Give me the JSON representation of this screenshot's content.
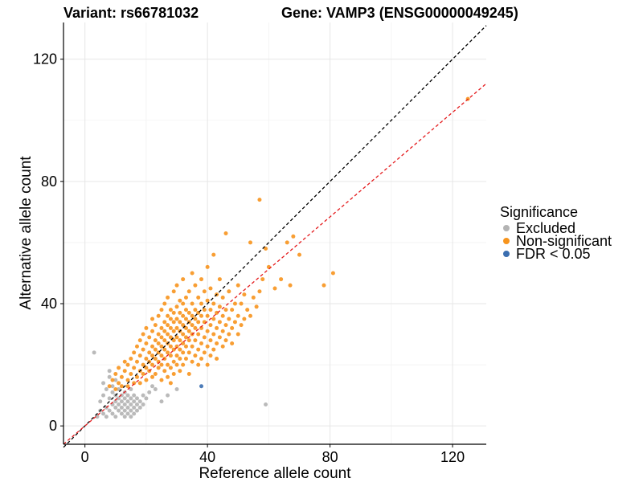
{
  "chart_data": {
    "type": "scatter",
    "title_left": "Variant: rs66781032",
    "title_right": "Gene: VAMP3 (ENSG00000049245)",
    "xlabel": "Reference allele count",
    "ylabel": "Alternative allele count",
    "xlim": [
      -7,
      131
    ],
    "ylim": [
      -6,
      132
    ],
    "xticks": [
      0,
      40,
      80,
      120
    ],
    "yticks": [
      0,
      40,
      80,
      120
    ],
    "x_minor": [
      20,
      60,
      100
    ],
    "y_minor": [
      20,
      60,
      100
    ],
    "grid": true,
    "legend_position": "right",
    "legend_title": "Significance",
    "reference_lines": [
      {
        "kind": "identity",
        "color": "#000000",
        "dashed": true,
        "slope": 1.0,
        "intercept": 0
      },
      {
        "kind": "fit",
        "color": "#e41a1c",
        "dashed": true,
        "slope": 0.855,
        "intercept": 0
      }
    ],
    "series": [
      {
        "name": "Excluded",
        "color": "#b3b3b3",
        "points": [
          [
            3,
            24
          ],
          [
            4,
            3
          ],
          [
            5,
            5
          ],
          [
            5,
            8
          ],
          [
            6,
            4
          ],
          [
            6,
            10
          ],
          [
            6,
            14
          ],
          [
            7,
            6
          ],
          [
            7,
            3
          ],
          [
            7,
            12
          ],
          [
            8,
            5
          ],
          [
            8,
            9
          ],
          [
            8,
            16
          ],
          [
            8,
            18
          ],
          [
            9,
            4
          ],
          [
            9,
            7
          ],
          [
            9,
            11
          ],
          [
            9,
            13
          ],
          [
            10,
            3
          ],
          [
            10,
            6
          ],
          [
            10,
            8
          ],
          [
            10,
            10
          ],
          [
            10,
            15
          ],
          [
            11,
            5
          ],
          [
            11,
            7
          ],
          [
            11,
            9
          ],
          [
            11,
            12
          ],
          [
            12,
            4
          ],
          [
            12,
            6
          ],
          [
            12,
            8
          ],
          [
            12,
            10
          ],
          [
            13,
            3
          ],
          [
            13,
            5
          ],
          [
            13,
            7
          ],
          [
            13,
            9
          ],
          [
            13,
            11
          ],
          [
            14,
            4
          ],
          [
            14,
            6
          ],
          [
            14,
            8
          ],
          [
            14,
            10
          ],
          [
            15,
            3
          ],
          [
            15,
            5
          ],
          [
            15,
            7
          ],
          [
            15,
            9
          ],
          [
            15,
            12
          ],
          [
            16,
            4
          ],
          [
            16,
            6
          ],
          [
            16,
            8
          ],
          [
            16,
            10
          ],
          [
            17,
            5
          ],
          [
            17,
            7
          ],
          [
            17,
            9
          ],
          [
            18,
            6
          ],
          [
            18,
            8
          ],
          [
            19,
            7
          ],
          [
            19,
            10
          ],
          [
            20,
            9
          ],
          [
            21,
            11
          ],
          [
            22,
            13
          ],
          [
            23,
            12
          ],
          [
            25,
            8
          ],
          [
            27,
            10
          ],
          [
            30,
            12
          ],
          [
            59,
            7
          ]
        ]
      },
      {
        "name": "Non-significant",
        "color": "#f7941d",
        "points": [
          [
            8,
            13
          ],
          [
            9,
            15
          ],
          [
            10,
            12
          ],
          [
            10,
            17
          ],
          [
            11,
            14
          ],
          [
            11,
            19
          ],
          [
            12,
            13
          ],
          [
            12,
            16
          ],
          [
            13,
            18
          ],
          [
            13,
            21
          ],
          [
            14,
            13
          ],
          [
            14,
            15
          ],
          [
            14,
            20
          ],
          [
            15,
            17
          ],
          [
            15,
            22
          ],
          [
            16,
            14
          ],
          [
            16,
            19
          ],
          [
            16,
            24
          ],
          [
            17,
            16
          ],
          [
            17,
            21
          ],
          [
            17,
            26
          ],
          [
            18,
            14
          ],
          [
            18,
            18
          ],
          [
            18,
            23
          ],
          [
            18,
            28
          ],
          [
            19,
            17
          ],
          [
            19,
            20
          ],
          [
            19,
            25
          ],
          [
            19,
            30
          ],
          [
            20,
            15
          ],
          [
            20,
            19
          ],
          [
            20,
            22
          ],
          [
            20,
            27
          ],
          [
            20,
            32
          ],
          [
            21,
            18
          ],
          [
            21,
            21
          ],
          [
            21,
            24
          ],
          [
            21,
            29
          ],
          [
            22,
            16
          ],
          [
            22,
            20
          ],
          [
            22,
            23
          ],
          [
            22,
            26
          ],
          [
            22,
            31
          ],
          [
            22,
            35
          ],
          [
            23,
            17
          ],
          [
            23,
            22
          ],
          [
            23,
            25
          ],
          [
            23,
            28
          ],
          [
            23,
            33
          ],
          [
            24,
            19
          ],
          [
            24,
            21
          ],
          [
            24,
            24
          ],
          [
            24,
            27
          ],
          [
            24,
            30
          ],
          [
            24,
            36
          ],
          [
            25,
            15
          ],
          [
            25,
            20
          ],
          [
            25,
            23
          ],
          [
            25,
            26
          ],
          [
            25,
            29
          ],
          [
            25,
            32
          ],
          [
            25,
            38
          ],
          [
            26,
            18
          ],
          [
            26,
            22
          ],
          [
            26,
            25
          ],
          [
            26,
            28
          ],
          [
            26,
            31
          ],
          [
            26,
            34
          ],
          [
            26,
            40
          ],
          [
            27,
            16
          ],
          [
            27,
            20
          ],
          [
            27,
            24
          ],
          [
            27,
            27
          ],
          [
            27,
            30
          ],
          [
            27,
            33
          ],
          [
            27,
            36
          ],
          [
            27,
            42
          ],
          [
            28,
            14
          ],
          [
            28,
            19
          ],
          [
            28,
            23
          ],
          [
            28,
            26
          ],
          [
            28,
            29
          ],
          [
            28,
            32
          ],
          [
            28,
            35
          ],
          [
            28,
            38
          ],
          [
            29,
            17
          ],
          [
            29,
            21
          ],
          [
            29,
            25
          ],
          [
            29,
            28
          ],
          [
            29,
            31
          ],
          [
            29,
            34
          ],
          [
            29,
            37
          ],
          [
            29,
            44
          ],
          [
            30,
            20
          ],
          [
            30,
            23
          ],
          [
            30,
            26
          ],
          [
            30,
            29
          ],
          [
            30,
            32
          ],
          [
            30,
            35
          ],
          [
            30,
            39
          ],
          [
            30,
            46
          ],
          [
            31,
            18
          ],
          [
            31,
            22
          ],
          [
            31,
            25
          ],
          [
            31,
            28
          ],
          [
            31,
            31
          ],
          [
            31,
            34
          ],
          [
            31,
            37
          ],
          [
            31,
            41
          ],
          [
            32,
            20
          ],
          [
            32,
            24
          ],
          [
            32,
            27
          ],
          [
            32,
            30
          ],
          [
            32,
            33
          ],
          [
            32,
            36
          ],
          [
            32,
            40
          ],
          [
            32,
            48
          ],
          [
            33,
            22
          ],
          [
            33,
            26
          ],
          [
            33,
            29
          ],
          [
            33,
            32
          ],
          [
            33,
            35
          ],
          [
            33,
            38
          ],
          [
            33,
            42
          ],
          [
            34,
            17
          ],
          [
            34,
            24
          ],
          [
            34,
            28
          ],
          [
            34,
            31
          ],
          [
            34,
            34
          ],
          [
            34,
            37
          ],
          [
            34,
            44
          ],
          [
            35,
            21
          ],
          [
            35,
            26
          ],
          [
            35,
            30
          ],
          [
            35,
            33
          ],
          [
            35,
            36
          ],
          [
            35,
            40
          ],
          [
            35,
            50
          ],
          [
            36,
            23
          ],
          [
            36,
            28
          ],
          [
            36,
            32
          ],
          [
            36,
            35
          ],
          [
            36,
            38
          ],
          [
            36,
            46
          ],
          [
            37,
            20
          ],
          [
            37,
            25
          ],
          [
            37,
            30
          ],
          [
            37,
            34
          ],
          [
            37,
            37
          ],
          [
            37,
            42
          ],
          [
            38,
            22
          ],
          [
            38,
            27
          ],
          [
            38,
            32
          ],
          [
            38,
            36
          ],
          [
            38,
            40
          ],
          [
            38,
            48
          ],
          [
            39,
            24
          ],
          [
            39,
            29
          ],
          [
            39,
            34
          ],
          [
            39,
            38
          ],
          [
            39,
            44
          ],
          [
            40,
            20
          ],
          [
            40,
            26
          ],
          [
            40,
            31
          ],
          [
            40,
            36
          ],
          [
            40,
            41
          ],
          [
            40,
            52
          ],
          [
            41,
            23
          ],
          [
            41,
            28
          ],
          [
            41,
            33
          ],
          [
            41,
            38
          ],
          [
            41,
            45
          ],
          [
            42,
            25
          ],
          [
            42,
            30
          ],
          [
            42,
            35
          ],
          [
            42,
            40
          ],
          [
            42,
            56
          ],
          [
            43,
            22
          ],
          [
            43,
            27
          ],
          [
            43,
            32
          ],
          [
            43,
            37
          ],
          [
            43,
            43
          ],
          [
            44,
            29
          ],
          [
            44,
            34
          ],
          [
            44,
            39
          ],
          [
            44,
            48
          ],
          [
            45,
            26
          ],
          [
            45,
            31
          ],
          [
            45,
            36
          ],
          [
            45,
            42
          ],
          [
            46,
            28
          ],
          [
            46,
            33
          ],
          [
            46,
            38
          ],
          [
            46,
            63
          ],
          [
            47,
            30
          ],
          [
            47,
            35
          ],
          [
            47,
            44
          ],
          [
            48,
            27
          ],
          [
            48,
            32
          ],
          [
            48,
            38
          ],
          [
            49,
            34
          ],
          [
            49,
            40
          ],
          [
            50,
            30
          ],
          [
            50,
            36
          ],
          [
            50,
            46
          ],
          [
            51,
            33
          ],
          [
            51,
            40
          ],
          [
            52,
            35
          ],
          [
            52,
            43
          ],
          [
            53,
            38
          ],
          [
            54,
            36
          ],
          [
            54,
            60
          ],
          [
            55,
            42
          ],
          [
            56,
            39
          ],
          [
            57,
            44
          ],
          [
            57,
            74
          ],
          [
            58,
            48
          ],
          [
            59,
            58
          ],
          [
            60,
            52
          ],
          [
            62,
            45
          ],
          [
            64,
            48
          ],
          [
            66,
            60
          ],
          [
            67,
            46
          ],
          [
            68,
            62
          ],
          [
            70,
            56
          ],
          [
            78,
            46
          ],
          [
            81,
            50
          ],
          [
            125,
            107
          ]
        ]
      },
      {
        "name": "FDR < 0.05",
        "color": "#3a6eb0",
        "points": [
          [
            38,
            13
          ]
        ]
      }
    ]
  }
}
